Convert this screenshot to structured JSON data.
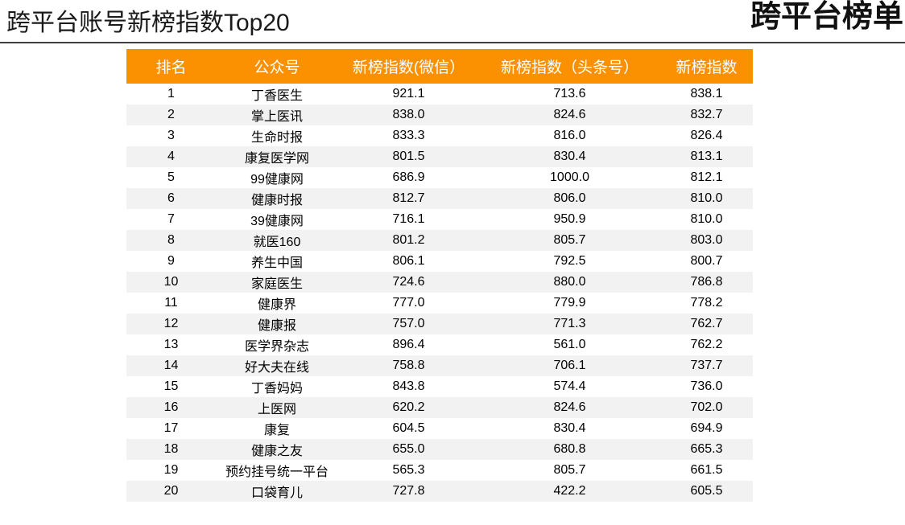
{
  "page": {
    "title": "跨平台账号新榜指数Top20",
    "corner_title": "跨平台榜单"
  },
  "colors": {
    "accent_orange": "#FB9100",
    "row_stripe": "#F2F2F2",
    "header_text": "#FFFFFF",
    "body_text": "#000000",
    "divider": "#3F3F3F"
  },
  "chart_data": {
    "type": "table",
    "title": "跨平台账号新榜指数Top20",
    "legend_position": "none",
    "grid": false,
    "columns": [
      "排名",
      "公众号",
      "新榜指数(微信）",
      "新榜指数（头条号）",
      "新榜指数"
    ],
    "rows": [
      [
        "1",
        "丁香医生",
        "921.1",
        "713.6",
        "838.1"
      ],
      [
        "2",
        "掌上医讯",
        "838.0",
        "824.6",
        "832.7"
      ],
      [
        "3",
        "生命时报",
        "833.3",
        "816.0",
        "826.4"
      ],
      [
        "4",
        "康复医学网",
        "801.5",
        "830.4",
        "813.1"
      ],
      [
        "5",
        "99健康网",
        "686.9",
        "1000.0",
        "812.1"
      ],
      [
        "6",
        "健康时报",
        "812.7",
        "806.0",
        "810.0"
      ],
      [
        "7",
        "39健康网",
        "716.1",
        "950.9",
        "810.0"
      ],
      [
        "8",
        "就医160",
        "801.2",
        "805.7",
        "803.0"
      ],
      [
        "9",
        "养生中国",
        "806.1",
        "792.5",
        "800.7"
      ],
      [
        "10",
        "家庭医生",
        "724.6",
        "880.0",
        "786.8"
      ],
      [
        "11",
        "健康界",
        "777.0",
        "779.9",
        "778.2"
      ],
      [
        "12",
        "健康报",
        "757.0",
        "771.3",
        "762.7"
      ],
      [
        "13",
        "医学界杂志",
        "896.4",
        "561.0",
        "762.2"
      ],
      [
        "14",
        "好大夫在线",
        "758.8",
        "706.1",
        "737.7"
      ],
      [
        "15",
        "丁香妈妈",
        "843.8",
        "574.4",
        "736.0"
      ],
      [
        "16",
        "上医网",
        "620.2",
        "824.6",
        "702.0"
      ],
      [
        "17",
        "康复",
        "604.5",
        "830.4",
        "694.9"
      ],
      [
        "18",
        "健康之友",
        "655.0",
        "680.8",
        "665.3"
      ],
      [
        "19",
        "预约挂号统一平台",
        "565.3",
        "805.7",
        "661.5"
      ],
      [
        "20",
        "口袋育儿",
        "727.8",
        "422.2",
        "605.5"
      ]
    ]
  }
}
